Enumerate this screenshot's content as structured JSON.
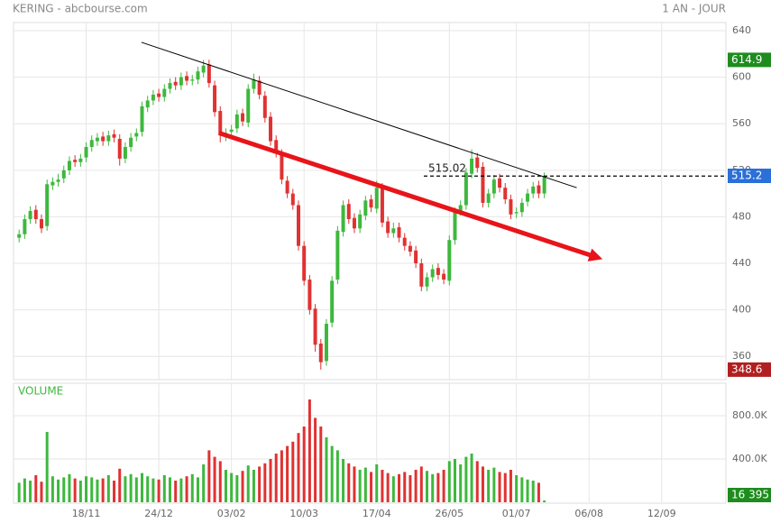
{
  "chart_data": {
    "type": "candlestick",
    "title": "KERING - abcbourse.com",
    "period": "1 AN - JOUR",
    "xlim": [
      -1,
      126.5
    ],
    "xticks": [
      {
        "value": 12,
        "label": "18/11"
      },
      {
        "value": 25,
        "label": "24/12"
      },
      {
        "value": 38,
        "label": "03/02"
      },
      {
        "value": 51,
        "label": "10/03"
      },
      {
        "value": 64,
        "label": "17/04"
      },
      {
        "value": 77,
        "label": "26/05"
      },
      {
        "value": 89,
        "label": "01/07"
      },
      {
        "value": 102,
        "label": "06/08"
      },
      {
        "value": 115,
        "label": "12/09"
      }
    ],
    "ylim": [
      340,
      647
    ],
    "yticks": [
      640,
      600,
      560,
      520,
      480,
      440,
      400,
      360
    ],
    "grid": true,
    "up_color": "#3db83d",
    "down_color": "#e03232",
    "open": [
      462,
      465,
      478,
      486,
      478,
      472,
      507,
      510,
      513,
      520,
      529,
      527,
      531,
      540,
      545,
      549,
      545,
      551,
      547,
      530,
      540,
      549,
      553,
      574,
      580,
      586,
      583,
      590,
      596,
      593,
      601,
      597,
      598,
      604,
      611,
      593,
      571,
      549,
      553,
      556,
      569,
      561,
      590,
      597,
      584,
      566,
      546,
      534,
      511,
      500,
      490,
      455,
      426,
      401,
      371,
      356,
      389,
      426,
      467,
      491,
      479,
      470,
      481,
      495,
      487,
      505,
      476,
      466,
      471,
      462,
      455,
      451,
      440,
      420,
      428,
      436,
      431,
      425,
      460,
      485,
      490,
      517,
      531,
      523,
      492,
      500,
      513,
      505,
      495,
      483,
      484,
      493,
      500,
      507,
      500
    ],
    "high": [
      469,
      482,
      489,
      490,
      482,
      512,
      514,
      517,
      524,
      532,
      533,
      534,
      544,
      550,
      552,
      553,
      554,
      555,
      551,
      544,
      552,
      556,
      579,
      584,
      589,
      590,
      594,
      599,
      600,
      604,
      605,
      602,
      609,
      614.9,
      615,
      597,
      575,
      556,
      559,
      572,
      573,
      594,
      603,
      601,
      588,
      570,
      550,
      538,
      515,
      504,
      494,
      459,
      430,
      405,
      375,
      392,
      429,
      472,
      494,
      495,
      483,
      486,
      498,
      499,
      511,
      509,
      480,
      475,
      475,
      466,
      459,
      455,
      444,
      432,
      439,
      440,
      435,
      464,
      488,
      494,
      522,
      538,
      535,
      527,
      504,
      516,
      517,
      509,
      499,
      488,
      496,
      504,
      510,
      511,
      518
    ],
    "low": [
      458,
      461,
      474,
      474,
      466,
      468,
      503,
      506,
      509,
      516,
      523,
      523,
      527,
      536,
      541,
      541,
      541,
      544,
      524,
      526,
      536,
      545,
      549,
      570,
      576,
      579,
      579,
      586,
      589,
      589,
      593,
      593,
      594,
      600,
      591,
      566,
      544,
      545,
      549,
      552,
      558,
      557,
      586,
      581,
      561,
      541,
      531,
      508,
      496,
      486,
      451,
      421,
      396,
      364,
      348.6,
      352,
      385,
      422,
      463,
      474,
      466,
      466,
      477,
      484,
      483,
      471,
      462,
      462,
      458,
      451,
      446,
      436,
      416,
      416,
      424,
      426,
      422,
      421,
      456,
      481,
      486,
      513,
      518,
      488,
      488,
      496,
      501,
      491,
      478,
      479,
      480,
      489,
      496,
      496,
      496
    ],
    "close": [
      465,
      478,
      485,
      478,
      470,
      508,
      510,
      512,
      520,
      528,
      527,
      530,
      540,
      546,
      548,
      545,
      550,
      548,
      530,
      540,
      548,
      552,
      575,
      580,
      585,
      583,
      590,
      595,
      593,
      600,
      597,
      598,
      605,
      610,
      595,
      570,
      550,
      552,
      555,
      568,
      562,
      590,
      598,
      585,
      565,
      545,
      535,
      512,
      500,
      490,
      455,
      425,
      400,
      370,
      355,
      388,
      425,
      468,
      490,
      478,
      470,
      482,
      494,
      488,
      505,
      475,
      466,
      470,
      462,
      455,
      450,
      440,
      420,
      428,
      435,
      430,
      426,
      460,
      484,
      490,
      518,
      530,
      522,
      492,
      500,
      512,
      505,
      495,
      482,
      484,
      492,
      500,
      506,
      500,
      515.2
    ],
    "badges": [
      {
        "value": 614.9,
        "color": "#1e8c1e"
      },
      {
        "value": 515.2,
        "color": "#2b6fd8"
      },
      {
        "value": 348.6,
        "color": "#b02020"
      }
    ],
    "level": {
      "value": 515.02,
      "color": "#000000"
    },
    "trendlines": [
      {
        "x": [
          21.9,
          99.8
        ],
        "y": [
          630,
          505
        ],
        "color": "#000000",
        "arrow": false
      },
      {
        "x": [
          35.8,
          103.5
        ],
        "y": [
          552,
          445
        ],
        "color": "#e8141a",
        "arrow": true
      }
    ],
    "volume": {
      "label": "VOLUME",
      "ylim": [
        0,
        1100000
      ],
      "yticks": [
        {
          "value": 400000,
          "label": "400.0K"
        },
        {
          "value": 800000,
          "label": "800.0K"
        }
      ],
      "values": [
        180000,
        220000,
        200000,
        250000,
        190000,
        650000,
        240000,
        210000,
        230000,
        260000,
        220000,
        200000,
        240000,
        230000,
        210000,
        220000,
        250000,
        200000,
        310000,
        240000,
        260000,
        230000,
        270000,
        240000,
        220000,
        210000,
        250000,
        230000,
        200000,
        220000,
        240000,
        260000,
        230000,
        350000,
        480000,
        420000,
        380000,
        300000,
        270000,
        250000,
        290000,
        340000,
        300000,
        330000,
        360000,
        400000,
        450000,
        480000,
        520000,
        560000,
        640000,
        700000,
        950000,
        780000,
        700000,
        600000,
        520000,
        480000,
        400000,
        360000,
        330000,
        300000,
        320000,
        280000,
        350000,
        300000,
        270000,
        240000,
        260000,
        280000,
        250000,
        300000,
        330000,
        290000,
        260000,
        270000,
        300000,
        380000,
        400000,
        350000,
        420000,
        450000,
        380000,
        330000,
        300000,
        320000,
        280000,
        270000,
        300000,
        250000,
        230000,
        210000,
        200000,
        180000,
        16395
      ],
      "last": {
        "value": 16395,
        "label": "16 395",
        "color": "#1e8c1e"
      }
    }
  }
}
